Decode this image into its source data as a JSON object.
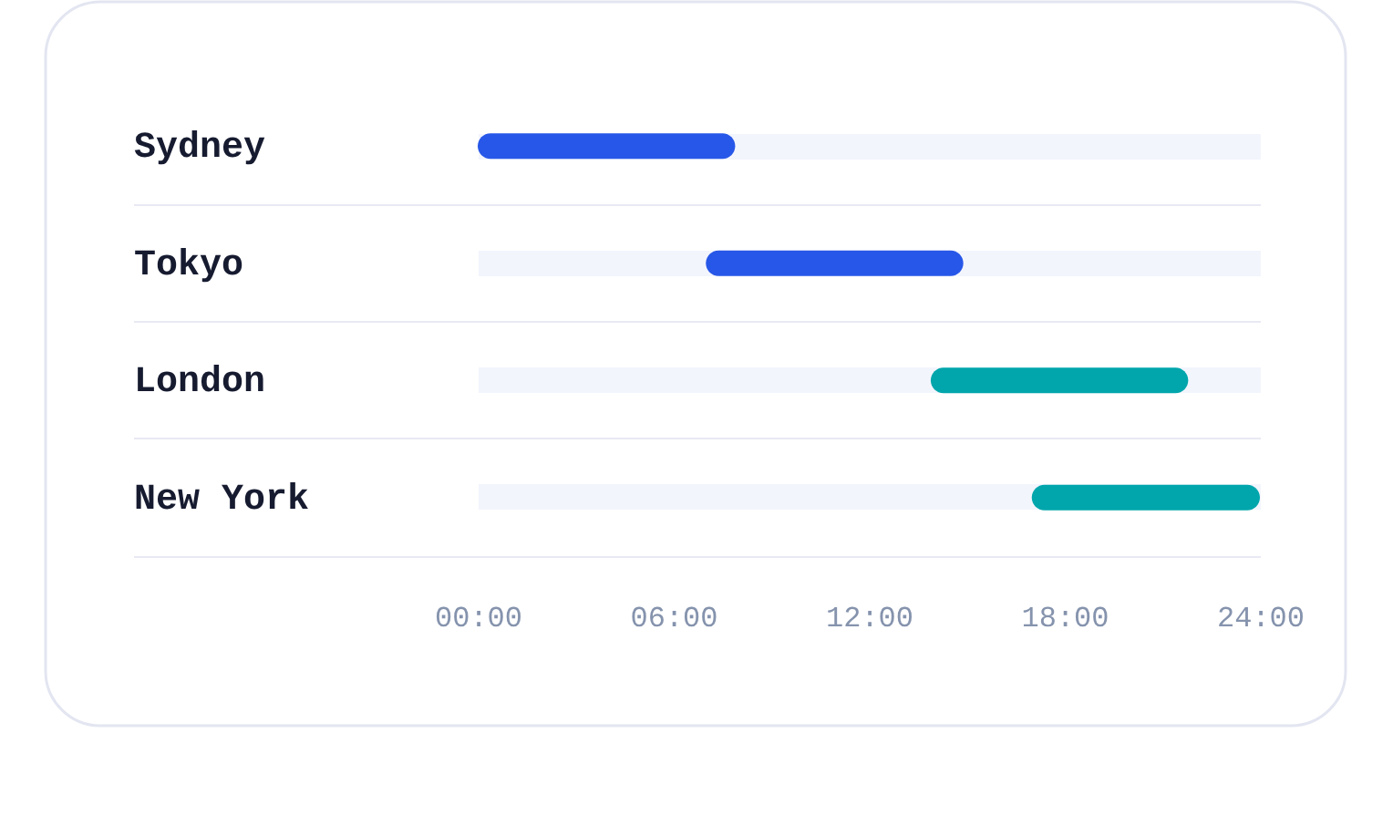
{
  "chart_data": {
    "type": "bar",
    "orientation": "horizontal",
    "categories": [
      "Sydney",
      "Tokyo",
      "London",
      "New York"
    ],
    "base": [
      0,
      7.0,
      13.9,
      17.0
    ],
    "values": [
      7.9,
      7.9,
      7.9,
      7.0
    ],
    "colors": [
      "#2757e8",
      "#2757e8",
      "#00a6ac",
      "#00a6ac"
    ],
    "xlim": [
      0,
      24
    ],
    "xticks": [
      {
        "value": 0,
        "label": "00:00"
      },
      {
        "value": 6,
        "label": "06:00"
      },
      {
        "value": 12,
        "label": "12:00"
      },
      {
        "value": 18,
        "label": "18:00"
      },
      {
        "value": 24,
        "label": "24:00"
      }
    ],
    "grid": "y"
  }
}
